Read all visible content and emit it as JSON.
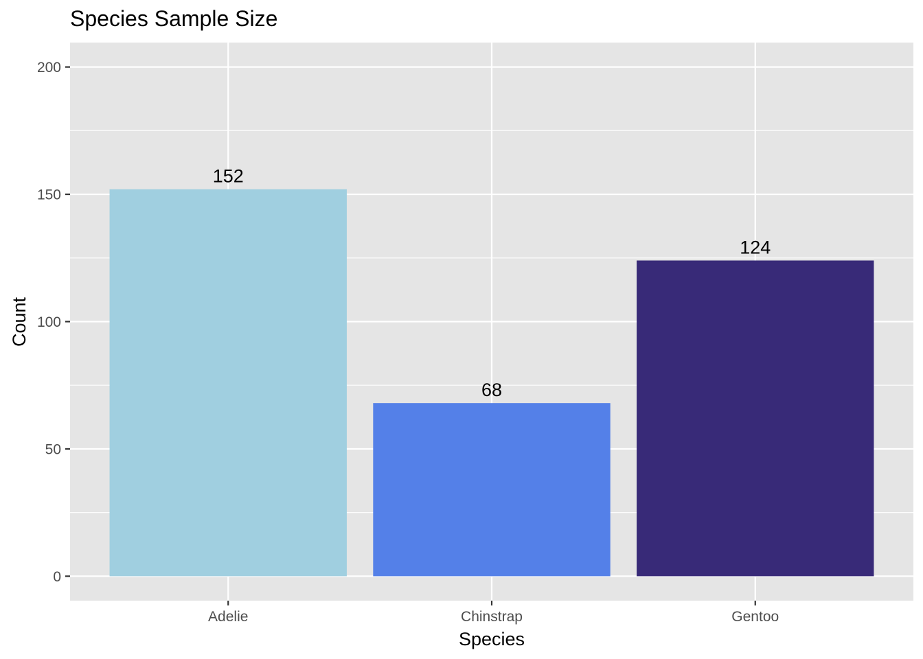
{
  "chart_data": {
    "type": "bar",
    "title": "Species Sample Size",
    "xlabel": "Species",
    "ylabel": "Count",
    "categories": [
      "Adelie",
      "Chinstrap",
      "Gentoo"
    ],
    "values": [
      152,
      68,
      124
    ],
    "data_labels": [
      "152",
      "68",
      "124"
    ],
    "colors": [
      "#a0cfe0",
      "#5480e8",
      "#382a78"
    ],
    "ylim": [
      -9.6,
      209.6
    ],
    "y_ticks": [
      0,
      50,
      100,
      150,
      200
    ],
    "y_tick_labels": [
      "0",
      "50",
      "100",
      "150",
      "200"
    ],
    "grid": true,
    "legend": "none",
    "panel_color": "#e5e5e5",
    "grid_color": "#ffffff"
  }
}
